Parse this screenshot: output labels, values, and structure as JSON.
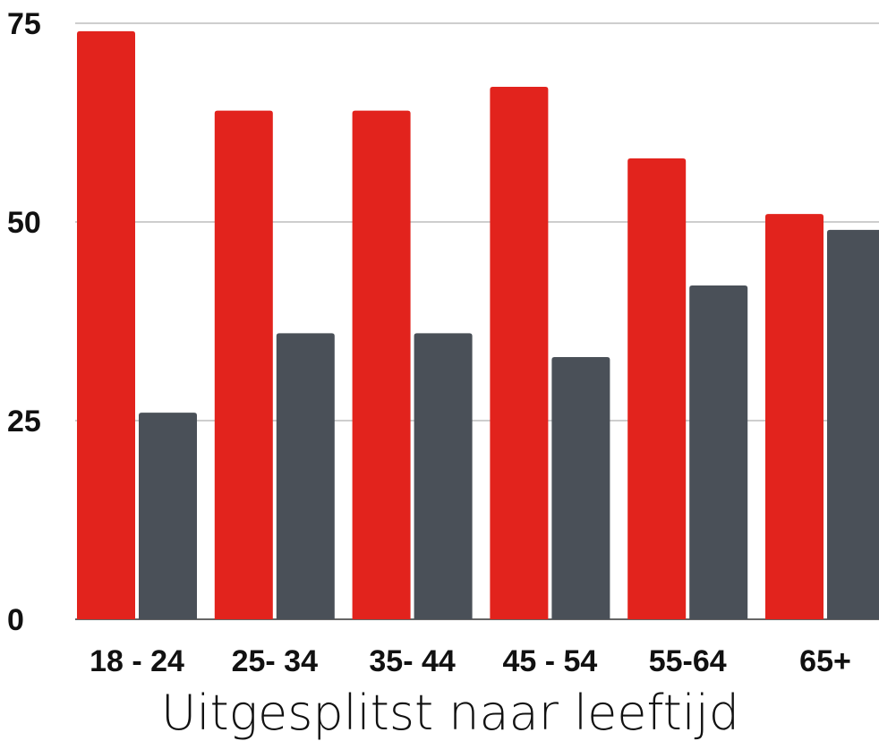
{
  "chart_data": {
    "type": "bar",
    "title": "",
    "xlabel": "Uitgesplitst naar leeftijd",
    "ylabel": "",
    "categories": [
      "18 - 24",
      "25- 34",
      "35- 44",
      "45 - 54",
      "55-64",
      "65+"
    ],
    "series": [
      {
        "color": "#e2231d",
        "values": [
          74,
          64,
          64,
          67,
          58,
          51
        ]
      },
      {
        "color": "#4a5058",
        "values": [
          26,
          36,
          36,
          33,
          42,
          49
        ]
      }
    ],
    "ylim": [
      0,
      75
    ],
    "yticks": [
      0,
      25,
      50,
      75
    ],
    "ytick_labels": [
      "0",
      "25",
      "50",
      "75"
    ],
    "grid": true,
    "legend": "none"
  }
}
